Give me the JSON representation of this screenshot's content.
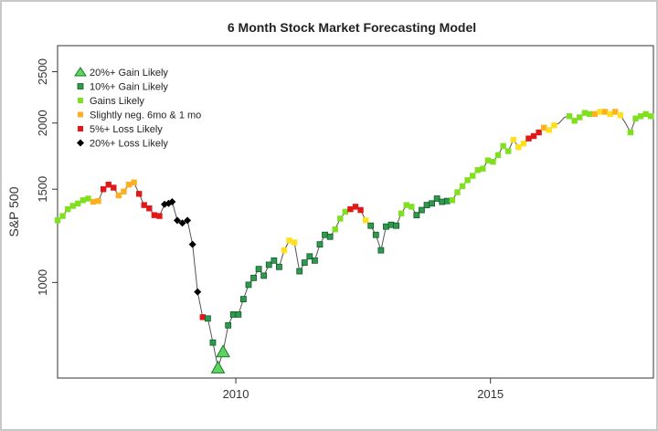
{
  "chart_data": {
    "type": "scatter",
    "title": "6 Month Stock Market Forecasting Model",
    "xlabel": "",
    "ylabel": "S&P 500",
    "x_ticks": [
      2010,
      2015
    ],
    "y_ticks": [
      1000,
      1500,
      2000,
      2500
    ],
    "xlim": [
      2006.5,
      2018.2
    ],
    "ylim": [
      660,
      2800
    ],
    "y_scale": "log",
    "grid": false,
    "legend_position": "top-left",
    "colors": {
      "gain20": "#5fd35f",
      "gain10": "#2e9a4e",
      "gains": "#80e020",
      "slightly_neg": "#ffb020",
      "slightly_neg_alt": "#ffe020",
      "loss5": "#e01818",
      "loss20": "#000000",
      "line": "#555555"
    },
    "legend": [
      {
        "label": "20%+ Gain Likely",
        "marker": "triangle",
        "color": "#5fd35f"
      },
      {
        "label": "10%+ Gain Likely",
        "marker": "square",
        "color": "#2e9a4e"
      },
      {
        "label": "Gains Likely",
        "marker": "square",
        "color": "#80e020"
      },
      {
        "label": "Slightly neg. 6mo & 1 mo",
        "marker": "square",
        "color": "#ffb020"
      },
      {
        "label": "5%+  Loss Likely",
        "marker": "square",
        "color": "#e01818"
      },
      {
        "label": "20%+  Loss Likely",
        "marker": "diamond",
        "color": "#000000"
      }
    ],
    "series": [
      {
        "x": 2006.5,
        "y": 1310,
        "cat": "gains"
      },
      {
        "x": 2006.6,
        "y": 1335,
        "cat": "gains"
      },
      {
        "x": 2006.7,
        "y": 1375,
        "cat": "gains"
      },
      {
        "x": 2006.8,
        "y": 1395,
        "cat": "gains"
      },
      {
        "x": 2006.9,
        "y": 1410,
        "cat": "gains"
      },
      {
        "x": 2007.0,
        "y": 1430,
        "cat": "gains"
      },
      {
        "x": 2007.1,
        "y": 1440,
        "cat": "gains"
      },
      {
        "x": 2007.2,
        "y": 1420,
        "cat": "slightly_neg"
      },
      {
        "x": 2007.3,
        "y": 1425,
        "cat": "slightly_neg"
      },
      {
        "x": 2007.4,
        "y": 1500,
        "cat": "loss5"
      },
      {
        "x": 2007.5,
        "y": 1530,
        "cat": "loss5"
      },
      {
        "x": 2007.6,
        "y": 1510,
        "cat": "loss5"
      },
      {
        "x": 2007.7,
        "y": 1460,
        "cat": "slightly_neg"
      },
      {
        "x": 2007.8,
        "y": 1485,
        "cat": "slightly_neg"
      },
      {
        "x": 2007.9,
        "y": 1530,
        "cat": "slightly_neg"
      },
      {
        "x": 2008.0,
        "y": 1545,
        "cat": "slightly_neg"
      },
      {
        "x": 2008.1,
        "y": 1470,
        "cat": "loss5"
      },
      {
        "x": 2008.2,
        "y": 1400,
        "cat": "loss5"
      },
      {
        "x": 2008.3,
        "y": 1380,
        "cat": "loss5"
      },
      {
        "x": 2008.4,
        "y": 1340,
        "cat": "loss5"
      },
      {
        "x": 2008.5,
        "y": 1335,
        "cat": "loss5"
      },
      {
        "x": 2008.6,
        "y": 1405,
        "cat": "loss20"
      },
      {
        "x": 2008.68,
        "y": 1410,
        "cat": "loss20"
      },
      {
        "x": 2008.75,
        "y": 1420,
        "cat": "loss20"
      },
      {
        "x": 2008.85,
        "y": 1310,
        "cat": "loss20"
      },
      {
        "x": 2008.95,
        "y": 1295,
        "cat": "loss20"
      },
      {
        "x": 2009.05,
        "y": 1310,
        "cat": "loss20"
      },
      {
        "x": 2009.15,
        "y": 1180,
        "cat": "loss20"
      },
      {
        "x": 2009.25,
        "y": 960,
        "cat": "loss20"
      },
      {
        "x": 2009.35,
        "y": 860,
        "cat": "loss5"
      },
      {
        "x": 2009.45,
        "y": 855,
        "cat": "gain10"
      },
      {
        "x": 2009.55,
        "y": 770,
        "cat": "gain10"
      },
      {
        "x": 2009.65,
        "y": 690,
        "cat": "gain20"
      },
      {
        "x": 2009.75,
        "y": 740,
        "cat": "gain20"
      },
      {
        "x": 2009.85,
        "y": 830,
        "cat": "gain10"
      },
      {
        "x": 2009.95,
        "y": 870,
        "cat": "gain10"
      },
      {
        "x": 2010.05,
        "y": 870,
        "cat": "gain10"
      },
      {
        "x": 2010.15,
        "y": 930,
        "cat": "gain10"
      },
      {
        "x": 2010.25,
        "y": 990,
        "cat": "gain10"
      },
      {
        "x": 2010.35,
        "y": 1020,
        "cat": "gain10"
      },
      {
        "x": 2010.45,
        "y": 1060,
        "cat": "gain10"
      },
      {
        "x": 2010.55,
        "y": 1030,
        "cat": "gain10"
      },
      {
        "x": 2010.65,
        "y": 1080,
        "cat": "gain10"
      },
      {
        "x": 2010.75,
        "y": 1100,
        "cat": "gain10"
      },
      {
        "x": 2010.85,
        "y": 1070,
        "cat": "gain10"
      },
      {
        "x": 2010.95,
        "y": 1150,
        "cat": "slightly_neg_alt"
      },
      {
        "x": 2011.05,
        "y": 1200,
        "cat": "slightly_neg_alt"
      },
      {
        "x": 2011.15,
        "y": 1190,
        "cat": "slightly_neg_alt"
      },
      {
        "x": 2011.25,
        "y": 1050,
        "cat": "gain10"
      },
      {
        "x": 2011.35,
        "y": 1090,
        "cat": "gain10"
      },
      {
        "x": 2011.45,
        "y": 1120,
        "cat": "gain10"
      },
      {
        "x": 2011.55,
        "y": 1100,
        "cat": "gain10"
      },
      {
        "x": 2011.65,
        "y": 1180,
        "cat": "gain10"
      },
      {
        "x": 2011.75,
        "y": 1230,
        "cat": "gain10"
      },
      {
        "x": 2011.85,
        "y": 1220,
        "cat": "gain10"
      },
      {
        "x": 2011.95,
        "y": 1260,
        "cat": "gains"
      },
      {
        "x": 2012.05,
        "y": 1320,
        "cat": "gains"
      },
      {
        "x": 2012.15,
        "y": 1360,
        "cat": "gains"
      },
      {
        "x": 2012.25,
        "y": 1375,
        "cat": "loss5"
      },
      {
        "x": 2012.35,
        "y": 1390,
        "cat": "loss5"
      },
      {
        "x": 2012.45,
        "y": 1370,
        "cat": "loss5"
      },
      {
        "x": 2012.55,
        "y": 1310,
        "cat": "slightly_neg_alt"
      },
      {
        "x": 2012.65,
        "y": 1280,
        "cat": "gain10"
      },
      {
        "x": 2012.75,
        "y": 1230,
        "cat": "gain10"
      },
      {
        "x": 2012.85,
        "y": 1150,
        "cat": "gain10"
      },
      {
        "x": 2012.95,
        "y": 1275,
        "cat": "gain10"
      },
      {
        "x": 2013.05,
        "y": 1285,
        "cat": "gain10"
      },
      {
        "x": 2013.15,
        "y": 1280,
        "cat": "gain10"
      },
      {
        "x": 2013.25,
        "y": 1350,
        "cat": "gains"
      },
      {
        "x": 2013.35,
        "y": 1400,
        "cat": "gains"
      },
      {
        "x": 2013.45,
        "y": 1390,
        "cat": "gains"
      },
      {
        "x": 2013.55,
        "y": 1340,
        "cat": "gain10"
      },
      {
        "x": 2013.65,
        "y": 1370,
        "cat": "gain10"
      },
      {
        "x": 2013.75,
        "y": 1400,
        "cat": "gain10"
      },
      {
        "x": 2013.85,
        "y": 1410,
        "cat": "gain10"
      },
      {
        "x": 2013.95,
        "y": 1440,
        "cat": "gain10"
      },
      {
        "x": 2014.05,
        "y": 1420,
        "cat": "gain10"
      },
      {
        "x": 2014.15,
        "y": 1425,
        "cat": "gain10"
      },
      {
        "x": 2014.25,
        "y": 1430,
        "cat": "gains"
      },
      {
        "x": 2014.35,
        "y": 1480,
        "cat": "gains"
      },
      {
        "x": 2014.45,
        "y": 1520,
        "cat": "gains"
      },
      {
        "x": 2014.55,
        "y": 1560,
        "cat": "gains"
      },
      {
        "x": 2014.65,
        "y": 1590,
        "cat": "gains"
      },
      {
        "x": 2014.75,
        "y": 1630,
        "cat": "gains"
      },
      {
        "x": 2014.85,
        "y": 1640,
        "cat": "gains"
      },
      {
        "x": 2014.95,
        "y": 1700,
        "cat": "gains"
      },
      {
        "x": 2015.05,
        "y": 1690,
        "cat": "gains"
      },
      {
        "x": 2015.15,
        "y": 1740,
        "cat": "gains"
      },
      {
        "x": 2015.25,
        "y": 1810,
        "cat": "gains"
      },
      {
        "x": 2015.35,
        "y": 1770,
        "cat": "gains"
      },
      {
        "x": 2015.45,
        "y": 1860,
        "cat": "slightly_neg_alt"
      },
      {
        "x": 2015.55,
        "y": 1800,
        "cat": "slightly_neg_alt"
      },
      {
        "x": 2015.65,
        "y": 1830,
        "cat": "slightly_neg_alt"
      },
      {
        "x": 2015.75,
        "y": 1870,
        "cat": "loss5"
      },
      {
        "x": 2015.85,
        "y": 1890,
        "cat": "loss5"
      },
      {
        "x": 2015.95,
        "y": 1920,
        "cat": "loss5"
      },
      {
        "x": 2016.05,
        "y": 1960,
        "cat": "slightly_neg"
      },
      {
        "x": 2016.15,
        "y": 1940,
        "cat": "slightly_neg_alt"
      },
      {
        "x": 2016.25,
        "y": 1980,
        "cat": "slightly_neg_alt"
      },
      {
        "x": 2016.35,
        "y": 2000,
        "cat": "line_only"
      },
      {
        "x": 2016.45,
        "y": 2050,
        "cat": "line_only"
      },
      {
        "x": 2016.55,
        "y": 2060,
        "cat": "gains"
      },
      {
        "x": 2016.65,
        "y": 2020,
        "cat": "gains"
      },
      {
        "x": 2016.75,
        "y": 2050,
        "cat": "gains"
      },
      {
        "x": 2016.85,
        "y": 2090,
        "cat": "gains"
      },
      {
        "x": 2016.95,
        "y": 2080,
        "cat": "gains"
      },
      {
        "x": 2017.05,
        "y": 2080,
        "cat": "slightly_neg"
      },
      {
        "x": 2017.15,
        "y": 2100,
        "cat": "slightly_neg_alt"
      },
      {
        "x": 2017.25,
        "y": 2100,
        "cat": "slightly_neg"
      },
      {
        "x": 2017.35,
        "y": 2080,
        "cat": "slightly_neg_alt"
      },
      {
        "x": 2017.45,
        "y": 2100,
        "cat": "slightly_neg"
      },
      {
        "x": 2017.55,
        "y": 2070,
        "cat": "slightly_neg_alt"
      },
      {
        "x": 2017.65,
        "y": 2000,
        "cat": "line_only"
      },
      {
        "x": 2017.75,
        "y": 1920,
        "cat": "gains"
      },
      {
        "x": 2017.85,
        "y": 2040,
        "cat": "gains"
      },
      {
        "x": 2017.95,
        "y": 2060,
        "cat": "gains"
      },
      {
        "x": 2018.05,
        "y": 2080,
        "cat": "gains"
      },
      {
        "x": 2018.15,
        "y": 2060,
        "cat": "gains"
      }
    ]
  }
}
